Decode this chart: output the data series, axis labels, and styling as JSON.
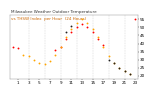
{
  "title": "Milwaukee Weather Outdoor Temperature vs THSW Index per Hour (24 Hours)",
  "background_color": "#ffffff",
  "grid_color": "#bbbbbb",
  "hours": [
    0,
    1,
    2,
    3,
    4,
    5,
    6,
    7,
    8,
    9,
    10,
    11,
    12,
    13,
    14,
    15,
    16,
    17,
    18,
    19,
    20,
    21,
    22,
    23
  ],
  "temp_series": {
    "color": "#ff0000",
    "values": [
      38,
      37,
      null,
      null,
      null,
      null,
      null,
      null,
      36,
      38,
      43,
      47,
      50,
      52,
      50,
      47,
      43,
      39,
      null,
      null,
      null,
      null,
      null,
      55
    ]
  },
  "thsw_series": {
    "color": "#ffa500",
    "values": [
      null,
      null,
      33,
      32,
      30,
      28,
      27,
      29,
      33,
      38,
      44,
      49,
      53,
      55,
      53,
      49,
      44,
      38,
      32,
      28,
      25,
      23,
      21,
      null
    ]
  },
  "black_series": {
    "color": "#222222",
    "values": [
      null,
      null,
      null,
      null,
      null,
      null,
      null,
      null,
      null,
      null,
      47,
      51,
      null,
      null,
      null,
      null,
      null,
      null,
      30,
      28,
      25,
      23,
      21,
      null
    ]
  },
  "ylim_min": 18,
  "ylim_max": 58,
  "ytick_values": [
    20,
    25,
    30,
    35,
    40,
    45,
    50,
    55
  ],
  "ytick_labels": [
    "2",
    "2",
    "3",
    "3",
    "4",
    "4",
    "5",
    "5"
  ],
  "xtick_labels": [
    "1",
    "1",
    "2",
    "3",
    "5",
    "7",
    "9",
    "1",
    "3",
    "5",
    "7",
    "9",
    "1",
    "3",
    "5"
  ],
  "dashed_grid_hours": [
    3,
    6,
    9,
    12,
    15,
    18,
    21
  ],
  "tick_fontsize": 3,
  "title_fontsize": 3,
  "marker_size": 1.8
}
